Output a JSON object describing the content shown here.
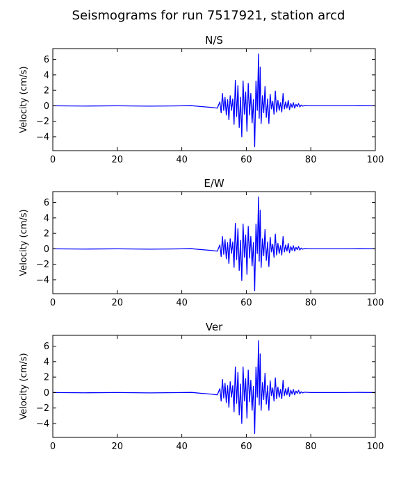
{
  "figure": {
    "title": "Seismograms for run 7517921, station arcd"
  },
  "chart_data": [
    {
      "type": "line",
      "title": "N/S",
      "xlabel": "",
      "ylabel": "Velocity (cm/s)",
      "xlim": [
        0,
        100
      ],
      "ylim": [
        -5.8,
        7.4
      ],
      "xticks": [
        0,
        20,
        40,
        60,
        80,
        100
      ],
      "yticks": [
        -4,
        -2,
        0,
        2,
        4,
        6
      ],
      "grid": false,
      "series": [
        {
          "color": "#0000ff",
          "x": [
            0,
            10,
            20,
            30,
            40,
            43,
            46,
            49,
            51,
            51.8,
            52.2,
            52.6,
            53.0,
            53.4,
            53.8,
            54.2,
            54.6,
            55.0,
            55.4,
            55.8,
            56.2,
            56.6,
            57.0,
            57.4,
            57.8,
            58.2,
            58.6,
            59.0,
            59.4,
            59.8,
            60.2,
            60.6,
            61.0,
            61.4,
            61.8,
            62.2,
            62.6,
            63.0,
            63.4,
            63.8,
            64.0,
            64.3,
            64.6,
            65.0,
            65.4,
            65.8,
            66.2,
            66.6,
            67.0,
            67.4,
            67.8,
            68.2,
            68.6,
            69.0,
            69.4,
            69.8,
            70.2,
            70.6,
            71.0,
            71.4,
            71.8,
            72.2,
            72.6,
            73.0,
            73.4,
            73.8,
            74.2,
            74.6,
            75.0,
            75.4,
            75.8,
            76.2,
            76.6,
            77.0,
            77.5,
            78,
            80,
            85,
            90,
            95,
            100
          ],
          "y": [
            0,
            -0.03,
            0,
            -0.04,
            0,
            0.02,
            -0.1,
            -0.2,
            -0.3,
            0.5,
            -0.9,
            1.6,
            -0.6,
            1.1,
            -1.2,
            0.8,
            -1.8,
            1.3,
            -0.6,
            0.9,
            -2.4,
            3.3,
            -1.4,
            2.6,
            -2.8,
            1.1,
            -4.0,
            3.2,
            -1.1,
            1.8,
            -3.3,
            2.9,
            -1.2,
            1.6,
            -2.2,
            0.8,
            -5.3,
            3.2,
            -0.6,
            6.7,
            -1.6,
            5.0,
            -2.3,
            1.3,
            -0.9,
            2.5,
            -1.5,
            0.9,
            -2.3,
            1.5,
            -0.4,
            0.6,
            -1.1,
            1.9,
            -0.8,
            0.7,
            -0.6,
            0.4,
            -0.8,
            1.6,
            -0.4,
            0.5,
            -0.3,
            0.7,
            -0.5,
            0.3,
            -0.2,
            0.4,
            -0.3,
            0.2,
            -0.1,
            0.3,
            -0.15,
            0.1,
            -0.05,
            0.05,
            0,
            0,
            0,
            0.02,
            0
          ]
        }
      ]
    },
    {
      "type": "line",
      "title": "E/W",
      "xlabel": "",
      "ylabel": "Velocity (cm/s)",
      "xlim": [
        0,
        100
      ],
      "ylim": [
        -5.8,
        7.4
      ],
      "xticks": [
        0,
        20,
        40,
        60,
        80,
        100
      ],
      "yticks": [
        -4,
        -2,
        0,
        2,
        4,
        6
      ],
      "grid": false,
      "series": [
        {
          "color": "#0000ff",
          "x": [
            0,
            10,
            20,
            30,
            40,
            43,
            46,
            49,
            51,
            51.8,
            52.2,
            52.6,
            53.0,
            53.4,
            53.8,
            54.2,
            54.6,
            55.0,
            55.4,
            55.8,
            56.2,
            56.6,
            57.0,
            57.4,
            57.8,
            58.2,
            58.6,
            59.0,
            59.4,
            59.8,
            60.2,
            60.6,
            61.0,
            61.4,
            61.8,
            62.2,
            62.6,
            63.0,
            63.4,
            63.8,
            64.0,
            64.3,
            64.6,
            65.0,
            65.4,
            65.8,
            66.2,
            66.6,
            67.0,
            67.4,
            67.8,
            68.2,
            68.6,
            69.0,
            69.4,
            69.8,
            70.2,
            70.6,
            71.0,
            71.4,
            71.8,
            72.2,
            72.6,
            73.0,
            73.4,
            73.8,
            74.2,
            74.6,
            75.0,
            75.4,
            75.8,
            76.2,
            76.6,
            77.0,
            77.5,
            78,
            80,
            85,
            90,
            95,
            100
          ],
          "y": [
            0,
            -0.03,
            0,
            -0.04,
            0,
            0.02,
            -0.1,
            -0.2,
            -0.3,
            0.5,
            -1.0,
            1.6,
            -0.7,
            1.2,
            -1.3,
            0.8,
            -1.9,
            1.3,
            -0.6,
            0.9,
            -2.4,
            3.3,
            -1.4,
            2.6,
            -2.8,
            1.1,
            -4.1,
            3.2,
            -1.1,
            1.8,
            -3.3,
            2.9,
            -1.2,
            1.6,
            -2.2,
            0.8,
            -5.4,
            3.2,
            -0.6,
            6.7,
            -1.6,
            5.0,
            -2.4,
            1.3,
            -0.9,
            2.5,
            -1.5,
            0.9,
            -2.3,
            1.5,
            -0.4,
            0.6,
            -1.1,
            1.9,
            -0.8,
            0.7,
            -0.6,
            0.4,
            -0.8,
            1.6,
            -0.4,
            0.5,
            -0.3,
            0.7,
            -0.5,
            0.3,
            -0.2,
            0.4,
            -0.3,
            0.2,
            -0.1,
            0.3,
            -0.15,
            0.1,
            -0.05,
            0.05,
            0,
            0,
            0,
            0.02,
            0
          ]
        }
      ]
    },
    {
      "type": "line",
      "title": "Ver",
      "xlabel": "",
      "ylabel": "Velocity (cm/s)",
      "xlim": [
        0,
        100
      ],
      "ylim": [
        -5.8,
        7.4
      ],
      "xticks": [
        0,
        20,
        40,
        60,
        80,
        100
      ],
      "yticks": [
        -4,
        -2,
        0,
        2,
        4,
        6
      ],
      "grid": false,
      "series": [
        {
          "color": "#0000ff",
          "x": [
            0,
            10,
            20,
            30,
            40,
            43,
            46,
            49,
            51,
            51.8,
            52.2,
            52.6,
            53.0,
            53.4,
            53.8,
            54.2,
            54.6,
            55.0,
            55.4,
            55.8,
            56.2,
            56.6,
            57.0,
            57.4,
            57.8,
            58.2,
            58.6,
            59.0,
            59.4,
            59.8,
            60.2,
            60.6,
            61.0,
            61.4,
            61.8,
            62.2,
            62.6,
            63.0,
            63.4,
            63.8,
            64.0,
            64.3,
            64.6,
            65.0,
            65.4,
            65.8,
            66.2,
            66.6,
            67.0,
            67.4,
            67.8,
            68.2,
            68.6,
            69.0,
            69.4,
            69.8,
            70.2,
            70.6,
            71.0,
            71.4,
            71.8,
            72.2,
            72.6,
            73.0,
            73.4,
            73.8,
            74.2,
            74.6,
            75.0,
            75.4,
            75.8,
            76.2,
            76.6,
            77.0,
            77.5,
            78,
            80,
            85,
            90,
            95,
            100
          ],
          "y": [
            0,
            -0.03,
            0,
            -0.04,
            0,
            0.02,
            -0.1,
            -0.2,
            -0.3,
            0.5,
            -1.1,
            1.7,
            -0.7,
            1.2,
            -1.3,
            0.9,
            -1.9,
            1.4,
            -0.6,
            0.9,
            -2.5,
            3.3,
            -1.4,
            2.6,
            -2.9,
            1.1,
            -4.0,
            3.3,
            -1.1,
            1.8,
            -3.3,
            2.9,
            -1.2,
            1.6,
            -2.3,
            0.8,
            -5.3,
            3.3,
            -0.6,
            6.7,
            -1.6,
            5.0,
            -2.3,
            1.3,
            -0.9,
            2.5,
            -1.5,
            0.9,
            -2.3,
            1.5,
            -0.4,
            0.6,
            -1.1,
            1.9,
            -0.8,
            0.7,
            -0.6,
            0.4,
            -0.8,
            1.6,
            -0.4,
            0.5,
            -0.3,
            0.7,
            -0.5,
            0.3,
            -0.2,
            0.4,
            -0.3,
            0.2,
            -0.1,
            0.3,
            -0.15,
            0.1,
            -0.05,
            0.05,
            0,
            0,
            0,
            0.02,
            0
          ]
        }
      ]
    }
  ]
}
